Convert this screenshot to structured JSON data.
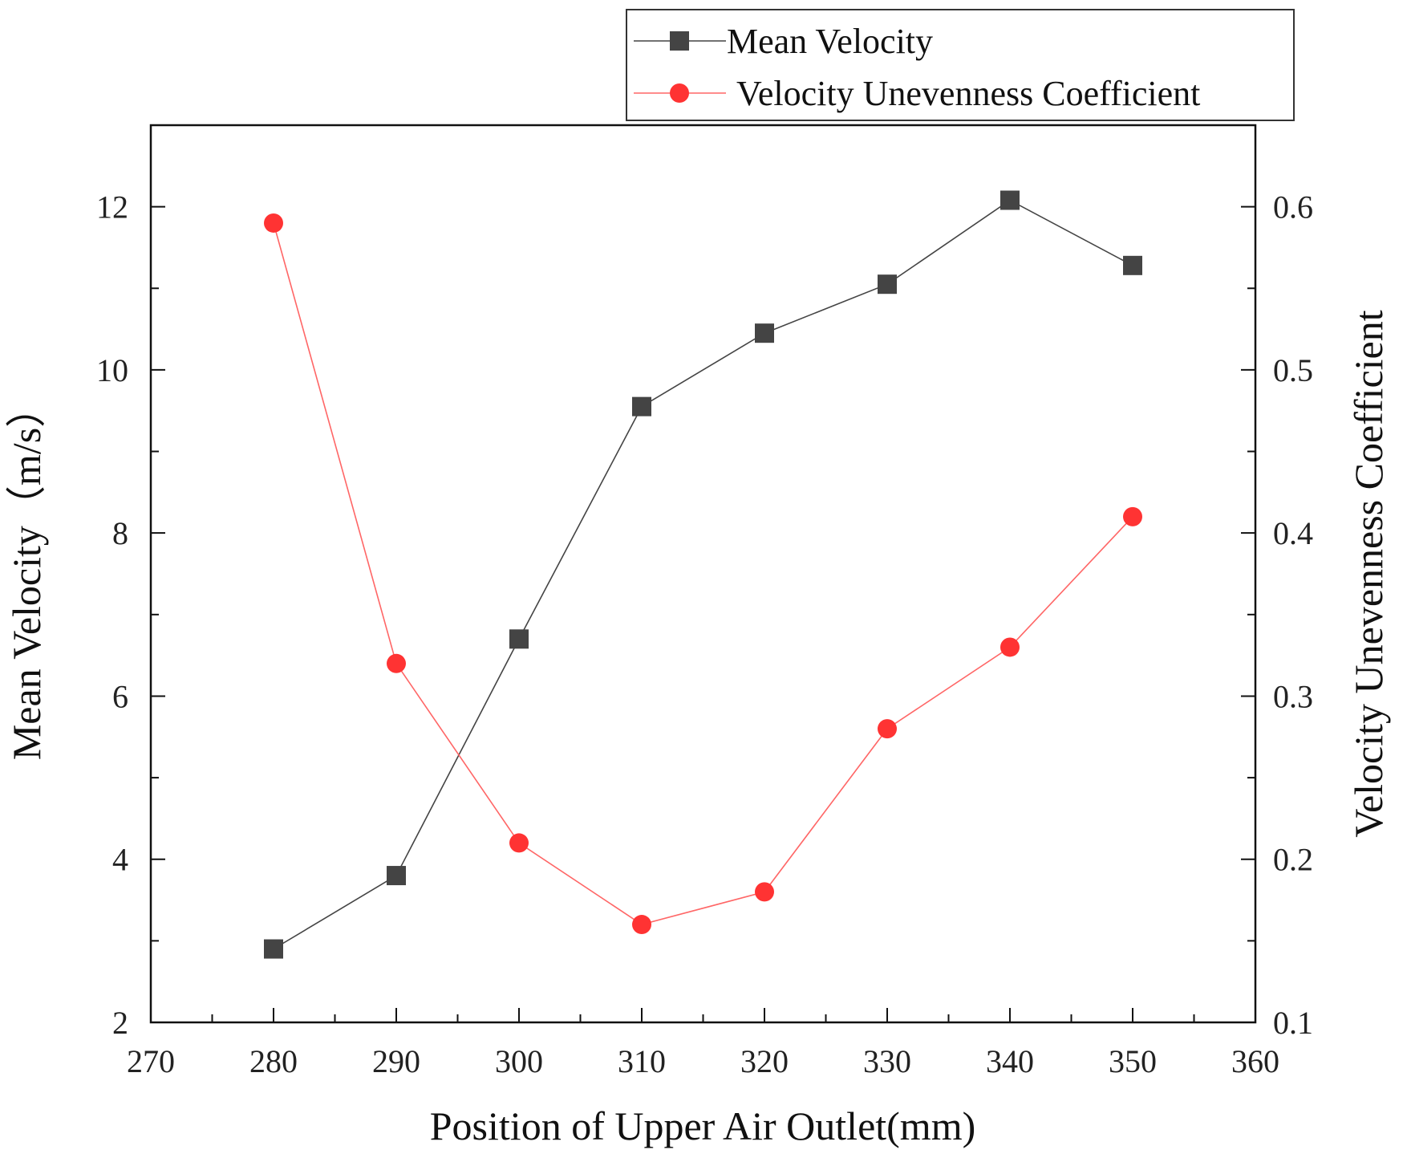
{
  "chart_data": {
    "type": "line",
    "title": "",
    "xlabel": "Position of Upper Air Outlet(mm)",
    "ylabel_left": "Mean Velocity（m/s）",
    "ylabel_right": "Velocity Unevenness Coefficient",
    "xlim": [
      270,
      360
    ],
    "ylim_left": [
      2,
      13
    ],
    "ylim_right": [
      0.1,
      0.65
    ],
    "x_ticks": [
      270,
      280,
      290,
      300,
      310,
      320,
      330,
      340,
      350,
      360
    ],
    "y_left_ticks": [
      2,
      4,
      6,
      8,
      10,
      12
    ],
    "y_right_ticks": [
      "0.1",
      "0.2",
      "0.3",
      "0.4",
      "0.5",
      "0.6"
    ],
    "grid": false,
    "legend_position": "top-right",
    "x": [
      280,
      290,
      300,
      310,
      320,
      330,
      340,
      350
    ],
    "series": [
      {
        "name": "Mean Velocity",
        "axis": "left",
        "marker": "square",
        "color": "#444444",
        "values": [
          2.9,
          3.8,
          6.7,
          9.55,
          10.45,
          11.05,
          12.08,
          11.28
        ]
      },
      {
        "name": "Velocity Unevenness Coefficient",
        "axis": "right",
        "marker": "circle",
        "color": "#ff3333",
        "values": [
          0.59,
          0.32,
          0.21,
          0.16,
          0.18,
          0.28,
          0.33,
          0.41
        ]
      }
    ]
  }
}
